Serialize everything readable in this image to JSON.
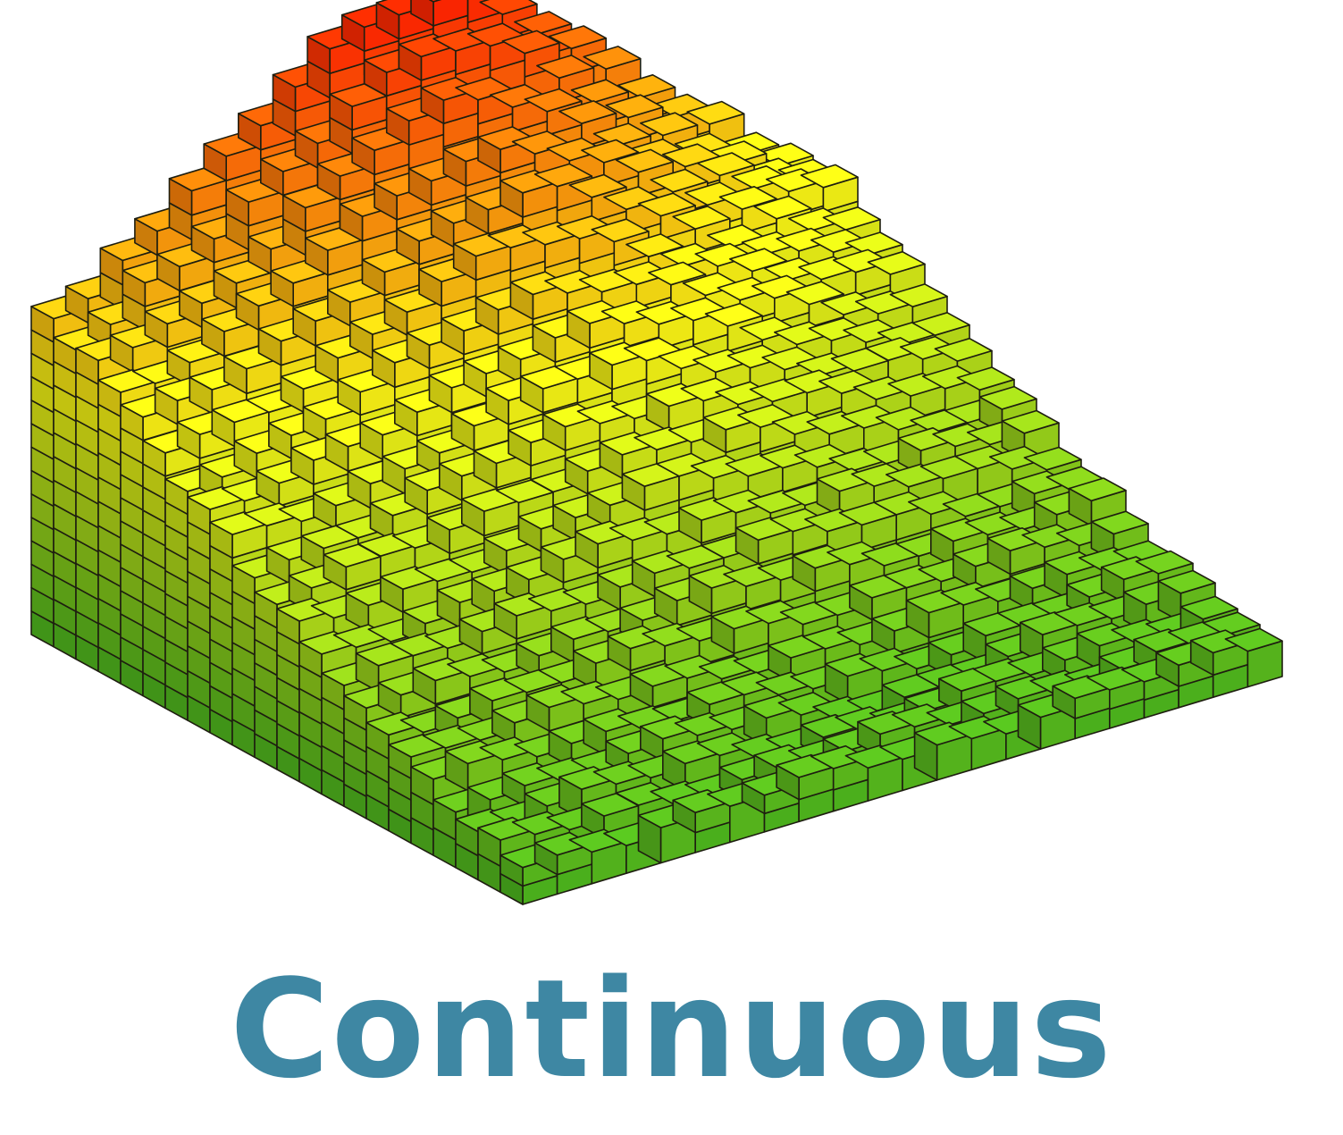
{
  "caption": "Continuous",
  "colors": {
    "caption": "#3e87a3",
    "gradient_low": "#3fae1e",
    "gradient_mid": "#f2ee14",
    "gradient_high": "#ff1e00",
    "edge": "#1e1e10"
  },
  "surface": {
    "type": "voxel-surface",
    "rows": 22,
    "cols": 22,
    "height_range": [
      0,
      1
    ]
  }
}
